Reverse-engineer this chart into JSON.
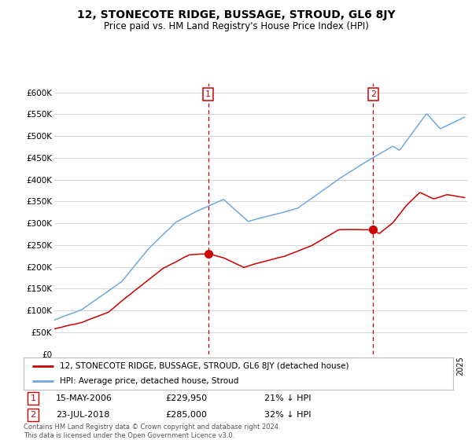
{
  "title": "12, STONECOTE RIDGE, BUSSAGE, STROUD, GL6 8JY",
  "subtitle": "Price paid vs. HM Land Registry's House Price Index (HPI)",
  "legend_line1": "12, STONECOTE RIDGE, BUSSAGE, STROUD, GL6 8JY (detached house)",
  "legend_line2": "HPI: Average price, detached house, Stroud",
  "annotation1_label": "1",
  "annotation1_date": "15-MAY-2006",
  "annotation1_price": "£229,950",
  "annotation1_note": "21% ↓ HPI",
  "annotation1_year": 2006.37,
  "annotation1_value": 229950,
  "annotation2_label": "2",
  "annotation2_date": "23-JUL-2018",
  "annotation2_price": "£285,000",
  "annotation2_note": "32% ↓ HPI",
  "annotation2_year": 2018.55,
  "annotation2_value": 285000,
  "footer": "Contains HM Land Registry data © Crown copyright and database right 2024.\nThis data is licensed under the Open Government Licence v3.0.",
  "hpi_color": "#6fa8dc",
  "property_color": "#cc0000",
  "annotation_color": "#cc0000",
  "background_color": "#ffffff",
  "grid_color": "#d0d0d0",
  "ylim": [
    0,
    620000
  ],
  "yticks": [
    0,
    50000,
    100000,
    150000,
    200000,
    250000,
    300000,
    350000,
    400000,
    450000,
    500000,
    550000,
    600000
  ],
  "xlim_start": 1995,
  "xlim_end": 2025.5
}
